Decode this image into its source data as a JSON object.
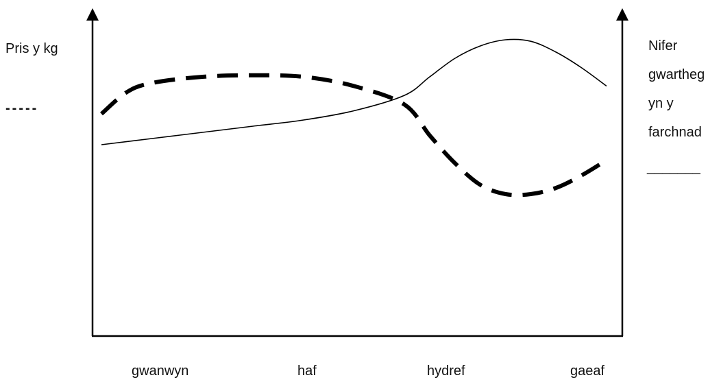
{
  "chart_data": {
    "type": "line",
    "categories": [
      "gwanwyn",
      "haf",
      "hydref",
      "gaeaf"
    ],
    "left_axis_label": "Pris y kg",
    "left_legend_key": "-----",
    "right_axis_label_lines": [
      "Nifer",
      "gwartheg",
      "yn y",
      "farchnad"
    ],
    "right_legend_key": "_______",
    "x_range": [
      0,
      5
    ],
    "y_range": [
      0,
      10
    ],
    "grid": false,
    "series": [
      {
        "style": "dashed",
        "axis": "left",
        "x": [
          0,
          0.25,
          0.5,
          1.0,
          1.5,
          2.0,
          2.5,
          3.0,
          3.25,
          3.5,
          3.75,
          4.0,
          4.25,
          4.5,
          4.75,
          5.0
        ],
        "y": [
          7.2,
          7.9,
          8.2,
          8.4,
          8.45,
          8.4,
          8.1,
          7.5,
          6.5,
          5.6,
          4.9,
          4.6,
          4.6,
          4.8,
          5.2,
          5.7
        ]
      },
      {
        "style": "solid",
        "axis": "right",
        "x": [
          0,
          0.5,
          1.0,
          1.5,
          2.0,
          2.5,
          3.0,
          3.25,
          3.5,
          3.75,
          4.0,
          4.25,
          4.5,
          4.75,
          5.0
        ],
        "y": [
          6.2,
          6.4,
          6.6,
          6.8,
          7.0,
          7.3,
          7.8,
          8.4,
          9.0,
          9.4,
          9.6,
          9.55,
          9.2,
          8.7,
          8.1
        ]
      }
    ]
  }
}
